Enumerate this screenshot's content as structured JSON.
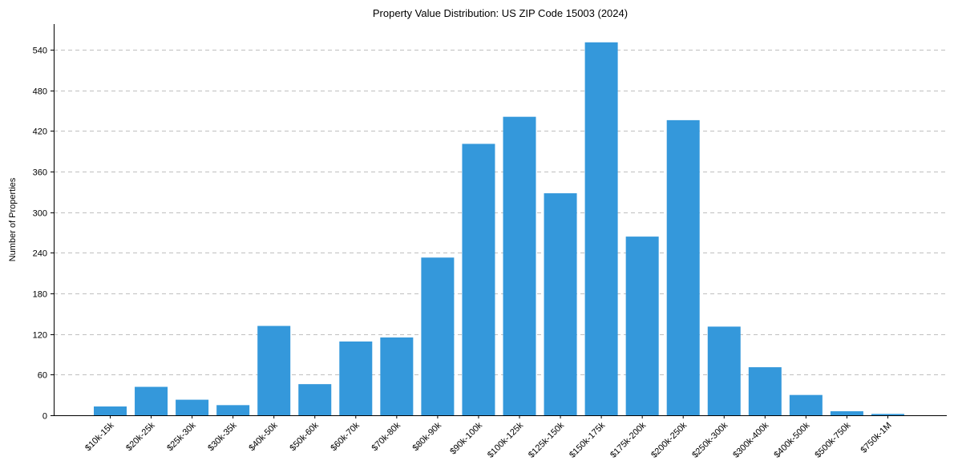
{
  "chart_data": {
    "type": "bar",
    "title": "Property Value Distribution: US ZIP Code 15003 (2024)",
    "xlabel": "",
    "ylabel": "Number of Properties",
    "categories": [
      "$10k-15k",
      "$20k-25k",
      "$25k-30k",
      "$30k-35k",
      "$40k-50k",
      "$50k-60k",
      "$60k-70k",
      "$70k-80k",
      "$80k-90k",
      "$90k-100k",
      "$100k-125k",
      "$125k-150k",
      "$150k-175k",
      "$175k-200k",
      "$200k-250k",
      "$250k-300k",
      "$300k-400k",
      "$400k-500k",
      "$500k-750k",
      "$750k-1M"
    ],
    "values": [
      13,
      42,
      23,
      15,
      132,
      46,
      109,
      115,
      233,
      401,
      441,
      328,
      551,
      264,
      436,
      131,
      71,
      30,
      6,
      2
    ],
    "yticks": [
      0,
      60,
      120,
      180,
      240,
      300,
      360,
      420,
      480,
      540
    ],
    "ylim": [
      0,
      578
    ],
    "grid": "y",
    "bar_color": "#3498db"
  }
}
